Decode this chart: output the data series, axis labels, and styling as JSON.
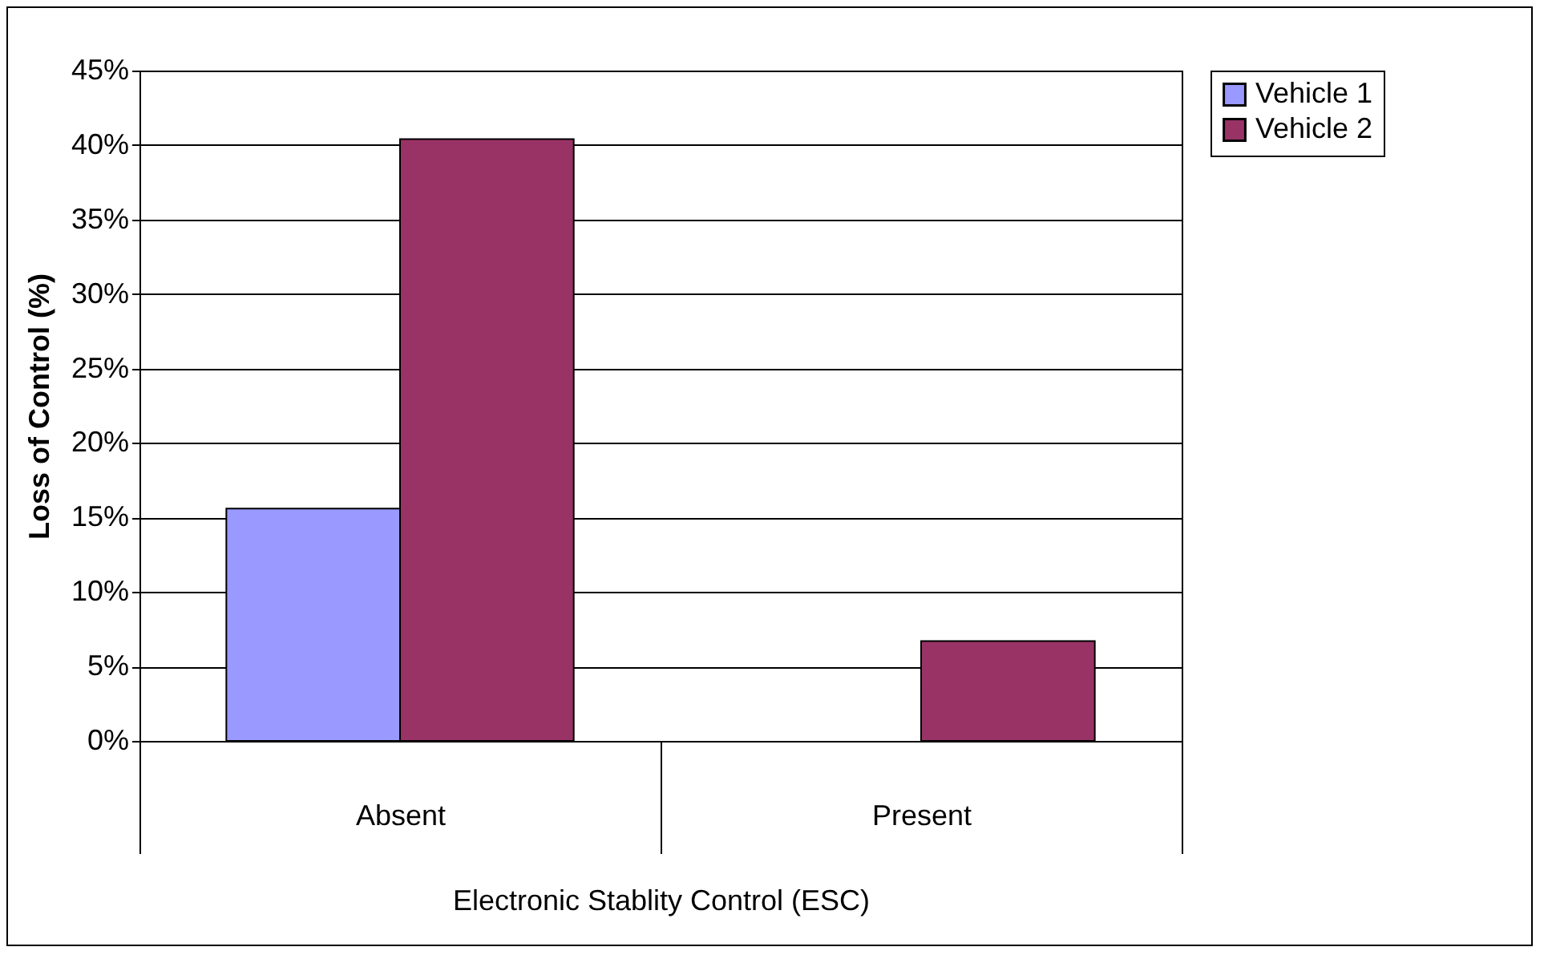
{
  "chart_data": {
    "type": "bar",
    "xlabel": "Electronic Stablity Control (ESC)",
    "ylabel": "Loss of Control (%)",
    "categories": [
      "Absent",
      "Present"
    ],
    "series": [
      {
        "name": "Vehicle 1",
        "color": "#9999ff",
        "values": [
          15.6,
          null
        ]
      },
      {
        "name": "Vehicle 2",
        "color": "#993366",
        "values": [
          40.4,
          6.7
        ]
      }
    ],
    "ylim": [
      0,
      45
    ],
    "yticks": [
      {
        "value": 0,
        "label": "0%"
      },
      {
        "value": 5,
        "label": "5%"
      },
      {
        "value": 10,
        "label": "10%"
      },
      {
        "value": 15,
        "label": "15%"
      },
      {
        "value": 20,
        "label": "20%"
      },
      {
        "value": 25,
        "label": "25%"
      },
      {
        "value": 30,
        "label": "30%"
      },
      {
        "value": 35,
        "label": "35%"
      },
      {
        "value": 40,
        "label": "40%"
      },
      {
        "value": 45,
        "label": "45%"
      }
    ],
    "grid": "y",
    "legend": "right"
  }
}
